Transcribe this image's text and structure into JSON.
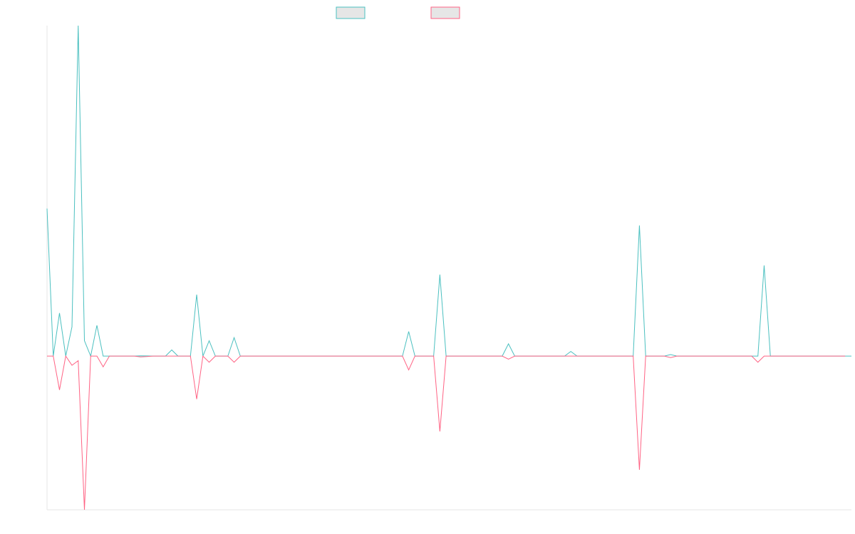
{
  "chart_data": {
    "type": "line",
    "title": "",
    "xlabel": "",
    "ylabel": "",
    "ylim": [
      -1.0,
      2.15
    ],
    "legend": {
      "placement": "top-center"
    },
    "grid": false,
    "series": [
      {
        "name": "",
        "color": "#4bc0c0",
        "fill": "#e6e6e6",
        "values": [
          0.96,
          0,
          0.28,
          0,
          0.19,
          2.15,
          0.1,
          0,
          0.2,
          0,
          0,
          0,
          0,
          0,
          0,
          0.002,
          0.001,
          0,
          0,
          0,
          0.04,
          0,
          0,
          0,
          0.4,
          0,
          0.1,
          0,
          0,
          0,
          0.12,
          0,
          0,
          0,
          0,
          0,
          0,
          0,
          0,
          0,
          0,
          0,
          0,
          0,
          0,
          0,
          0,
          0,
          0,
          0,
          0,
          0,
          0,
          0,
          0,
          0,
          0,
          0,
          0.16,
          0,
          0,
          0,
          0,
          0.53,
          0,
          0,
          0,
          0,
          0,
          0,
          0,
          0,
          0,
          0,
          0.08,
          0,
          0,
          0,
          0,
          0,
          0,
          0,
          0,
          0,
          0.03,
          0,
          0,
          0,
          0,
          0,
          0,
          0,
          0,
          0,
          0,
          0.85,
          0,
          0,
          0,
          0,
          0.01,
          0,
          0,
          0,
          0,
          0,
          0,
          0,
          0,
          0,
          0,
          0,
          0,
          0,
          0,
          0.59,
          0,
          0,
          0,
          0,
          0,
          0,
          0,
          0,
          0,
          0,
          0,
          0,
          0,
          0
        ]
      },
      {
        "name": "",
        "color": "#ff6384",
        "fill": "#e6e6e6",
        "values": [
          0,
          0,
          -0.22,
          0,
          -0.06,
          -0.03,
          -1.0,
          0,
          0,
          -0.07,
          0,
          0,
          0,
          0,
          0,
          -0.005,
          -0.003,
          0,
          0,
          0,
          0,
          0,
          0,
          0,
          -0.28,
          0,
          -0.04,
          0,
          0,
          0,
          -0.04,
          0,
          0,
          0,
          0,
          0,
          0,
          0,
          0,
          0,
          0,
          0,
          0,
          0,
          0,
          0,
          0,
          0,
          0,
          0,
          0,
          0,
          0,
          0,
          0,
          0,
          0,
          0,
          -0.09,
          0,
          0,
          0,
          0,
          -0.49,
          0,
          0,
          0,
          0,
          0,
          0,
          0,
          0,
          0,
          0,
          -0.02,
          0,
          0,
          0,
          0,
          0,
          0,
          0,
          0,
          0,
          0,
          0,
          0,
          0,
          0,
          0,
          0,
          0,
          0,
          0,
          0,
          -0.74,
          0,
          0,
          0,
          0,
          -0.01,
          0,
          0,
          0,
          0,
          0,
          0,
          0,
          0,
          0,
          0,
          0,
          0,
          0,
          -0.04,
          0,
          0,
          0,
          0,
          0,
          0,
          0,
          0,
          0,
          0,
          0,
          0,
          0,
          0
        ]
      }
    ]
  }
}
